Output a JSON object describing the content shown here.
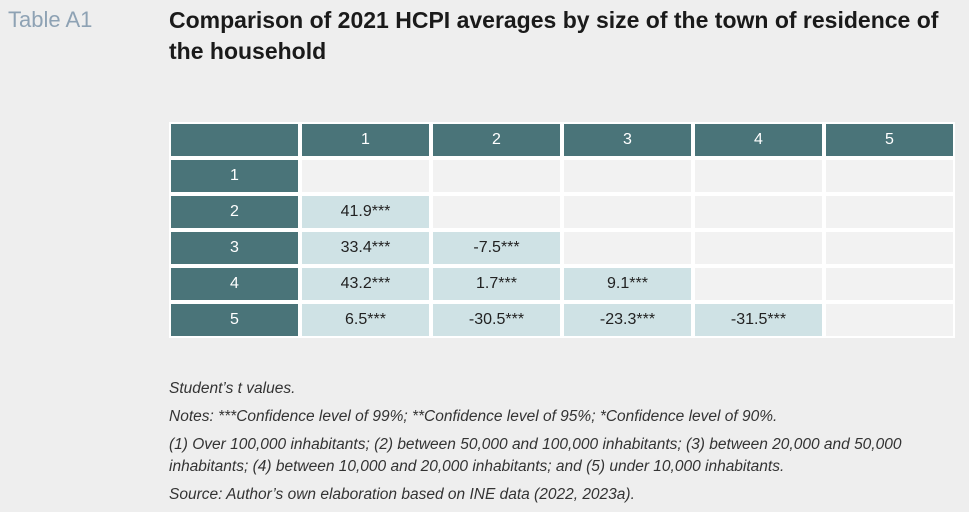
{
  "table_label": "Table A1",
  "title": "Comparison of 2021 HCPI averages by size of the town of residence of the household",
  "table": {
    "col_headers": [
      "1",
      "2",
      "3",
      "4",
      "5"
    ],
    "row_headers": [
      "1",
      "2",
      "3",
      "4",
      "5"
    ],
    "rows": [
      [
        "",
        "",
        "",
        "",
        ""
      ],
      [
        "41.9***",
        "",
        "",
        "",
        ""
      ],
      [
        "33.4***",
        "-7.5***",
        "",
        "",
        ""
      ],
      [
        "43.2***",
        "1.7***",
        "9.1***",
        "",
        ""
      ],
      [
        "6.5***",
        "-30.5***",
        "-23.3***",
        "-31.5***",
        ""
      ]
    ]
  },
  "notes": {
    "t_values": "Student’s t values.",
    "confidence": "Notes: ***Confidence level of 99%; **Confidence level of 95%; *Confidence level of 90%.",
    "sizes": "(1) Over 100,000 inhabitants; (2) between 50,000 and 100,000 inhabitants; (3) between 20,000 and 50,000 inhabitants; (4) between 10,000 and 20,000 inhabitants; and (5) under 10,000 inhabitants.",
    "source": "Source: Author’s own elaboration based on INE data (2022, 2023a)."
  },
  "colors": {
    "header_bg": "#4a7479",
    "value_bg": "#cfe2e5",
    "empty_bg": "#f2f2f2",
    "label_color": "#8ea2b4"
  }
}
